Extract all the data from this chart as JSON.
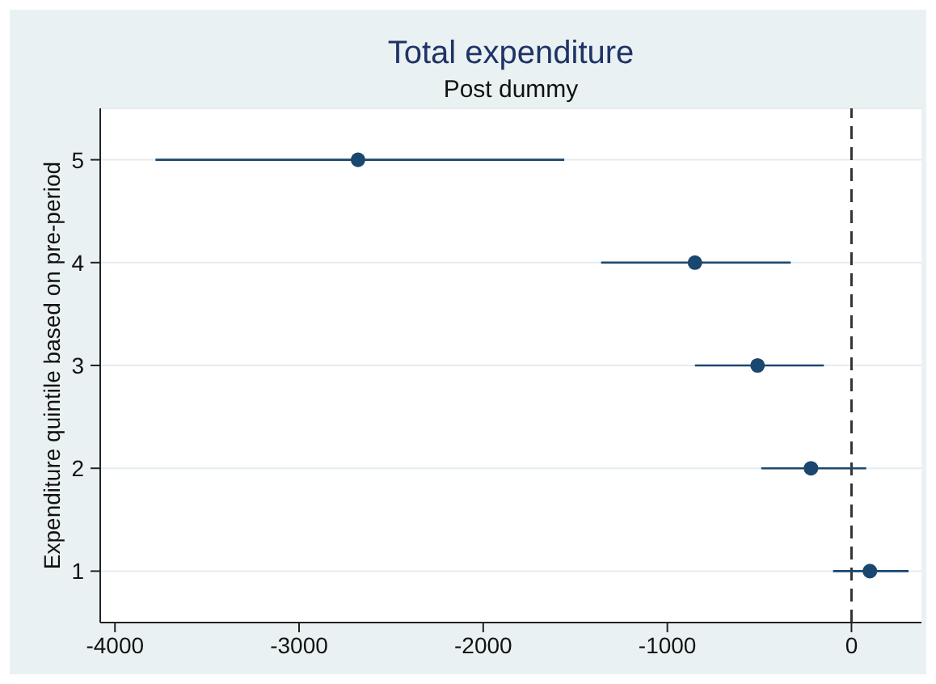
{
  "chart_data": {
    "type": "scatter",
    "title": "Total expenditure",
    "subtitle": "Post dummy",
    "ylabel": "Expenditure quintile based on pre-period",
    "x": [
      -2680,
      -850,
      -510,
      -220,
      100
    ],
    "values": [
      5,
      4,
      3,
      2,
      1
    ],
    "xerrors": [
      [
        -3780,
        -1560
      ],
      [
        -1360,
        -330
      ],
      [
        -850,
        -150
      ],
      [
        -490,
        80
      ],
      [
        -100,
        310
      ]
    ],
    "color": "#1a476f",
    "marker": "circle",
    "xlim": [
      -4080,
      380
    ],
    "xticks": [
      -4000,
      -3000,
      -2000,
      -1000,
      0
    ],
    "ylim": [
      0.5,
      5.5
    ],
    "yticks": [
      1,
      2,
      3,
      4,
      5
    ],
    "grid": "y",
    "ref_lines": [
      {
        "axis": "x",
        "value": 0,
        "line_style": "dashed",
        "color": "#333333"
      }
    ]
  }
}
